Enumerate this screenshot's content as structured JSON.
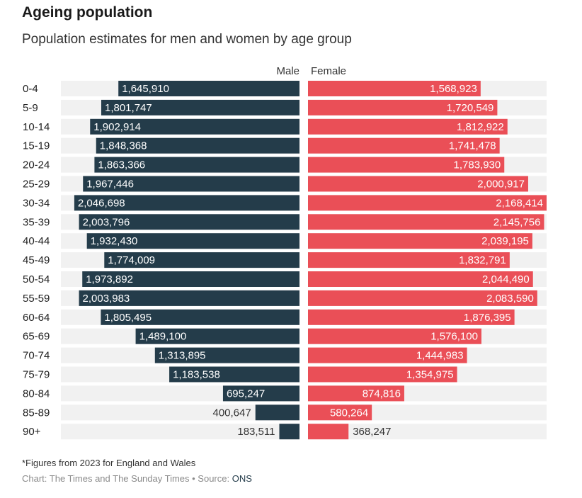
{
  "header": {
    "title": "Ageing population",
    "subtitle": "Population estimates for men and women by age group"
  },
  "footer": {
    "note": "*Figures from 2023 for England and Wales",
    "credit_prefix": "Chart: The Times and The Sunday Times • Source: ",
    "source": "ONS"
  },
  "colors": {
    "male": "#243c4a",
    "female": "#ea4f57",
    "row_bg": "#f1f1f1",
    "label_inside": "#ffffff",
    "label_outside": "#333333"
  },
  "chart_data": {
    "type": "bar",
    "subtype": "population-pyramid",
    "title": "Ageing population",
    "subtitle": "Population estimates for men and women by age group",
    "xlim": [
      0,
      2168414
    ],
    "categories": [
      "0-4",
      "5-9",
      "10-14",
      "15-19",
      "20-24",
      "25-29",
      "30-34",
      "35-39",
      "40-44",
      "45-49",
      "50-54",
      "55-59",
      "60-64",
      "65-69",
      "70-74",
      "75-79",
      "80-84",
      "85-89",
      "90+"
    ],
    "series": [
      {
        "name": "Male",
        "values": [
          1645910,
          1801747,
          1902914,
          1848368,
          1863366,
          1967446,
          2046698,
          2003796,
          1932430,
          1774009,
          1973892,
          2003983,
          1805495,
          1489100,
          1313895,
          1183538,
          695247,
          400647,
          183511
        ],
        "labels": [
          "1,645,910",
          "1,801,747",
          "1,902,914",
          "1,848,368",
          "1,863,366",
          "1,967,446",
          "2,046,698",
          "2,003,796",
          "1,932,430",
          "1,774,009",
          "1,973,892",
          "2,003,983",
          "1,805,495",
          "1,489,100",
          "1,313,895",
          "1,183,538",
          "695,247",
          "400,647",
          "183,511"
        ]
      },
      {
        "name": "Female",
        "values": [
          1568923,
          1720549,
          1812922,
          1741478,
          1783930,
          2000917,
          2168414,
          2145756,
          2039195,
          1832791,
          2044490,
          2083590,
          1876395,
          1576100,
          1444983,
          1354975,
          874816,
          580264,
          368247
        ],
        "labels": [
          "1,568,923",
          "1,720,549",
          "1,812,922",
          "1,741,478",
          "1,783,930",
          "2,000,917",
          "2,168,414",
          "2,145,756",
          "2,039,195",
          "1,832,791",
          "2,044,490",
          "2,083,590",
          "1,876,395",
          "1,576,100",
          "1,444,983",
          "1,354,975",
          "874,816",
          "580,264",
          "368,247"
        ]
      }
    ]
  }
}
